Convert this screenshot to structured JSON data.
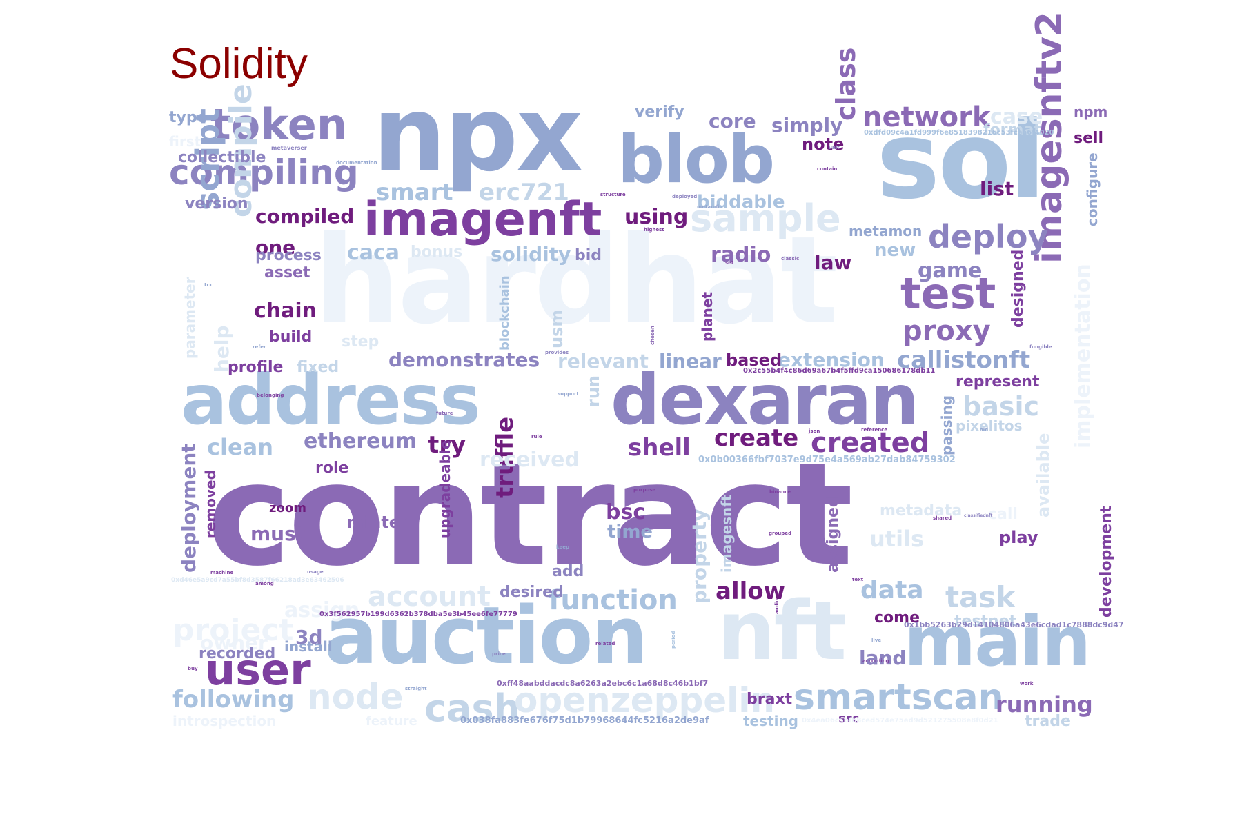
{
  "title": "Solidity",
  "colors": {
    "title": "#8b0000",
    "palette": {
      "c0": "#edf3fa",
      "c1": "#dde8f3",
      "c2": "#c3d5e8",
      "c3": "#a9c2df",
      "c4": "#93a6d0",
      "c5": "#8c83c0",
      "c6": "#8b6ab5",
      "c7": "#7d3f9f",
      "c8": "#6f1c7d"
    }
  },
  "words": [
    {
      "text": "contract",
      "c": "c6"
    },
    {
      "text": "hardhat",
      "c": "c0"
    },
    {
      "text": "npx",
      "c": "c4"
    },
    {
      "text": "sol",
      "c": "c3"
    },
    {
      "text": "auction",
      "c": "c3"
    },
    {
      "text": "nft",
      "c": "c1"
    },
    {
      "text": "main",
      "c": "c3"
    },
    {
      "text": "address",
      "c": "c3"
    },
    {
      "text": "dexaran",
      "c": "c5"
    },
    {
      "text": "blob",
      "c": "c4"
    },
    {
      "text": "imagenft",
      "c": "c7"
    },
    {
      "text": "imagesnftv2",
      "c": "c6"
    },
    {
      "text": "token",
      "c": "c5"
    },
    {
      "text": "compiling",
      "c": "c5"
    },
    {
      "text": "test",
      "c": "c6"
    },
    {
      "text": "user",
      "c": "c7"
    },
    {
      "text": "smartscan",
      "c": "c3"
    },
    {
      "text": "sample",
      "c": "c1"
    },
    {
      "text": "deploy",
      "c": "c5"
    },
    {
      "text": "network",
      "c": "c6"
    },
    {
      "text": "class",
      "c": "c6"
    },
    {
      "text": "proxy",
      "c": "c6"
    },
    {
      "text": "script",
      "c": "c4"
    },
    {
      "text": "compile",
      "c": "c2"
    },
    {
      "text": "cash",
      "c": "c2"
    },
    {
      "text": "node",
      "c": "c1"
    },
    {
      "text": "openzeppelin",
      "c": "c1"
    },
    {
      "text": "callistonft",
      "c": "c4"
    },
    {
      "text": "created",
      "c": "c7"
    },
    {
      "text": "create",
      "c": "c8"
    },
    {
      "text": "function",
      "c": "c3"
    },
    {
      "text": "account",
      "c": "c1"
    },
    {
      "text": "task",
      "c": "c2"
    },
    {
      "text": "data",
      "c": "c3"
    },
    {
      "text": "basic",
      "c": "c2"
    },
    {
      "text": "following",
      "c": "c3"
    },
    {
      "text": "allow",
      "c": "c8"
    },
    {
      "text": "shell",
      "c": "c7"
    },
    {
      "text": "truffle",
      "c": "c8"
    },
    {
      "text": "try",
      "c": "c8"
    },
    {
      "text": "ethereum",
      "c": "c5"
    },
    {
      "text": "clean",
      "c": "c3"
    },
    {
      "text": "demonstrates",
      "c": "c5"
    },
    {
      "text": "relevant",
      "c": "c2"
    },
    {
      "text": "linear",
      "c": "c4"
    },
    {
      "text": "extension",
      "c": "c3"
    },
    {
      "text": "based",
      "c": "c8"
    },
    {
      "text": "smart",
      "c": "c3"
    },
    {
      "text": "erc721",
      "c": "c2"
    },
    {
      "text": "caca",
      "c": "c3"
    },
    {
      "text": "solidity",
      "c": "c3"
    },
    {
      "text": "radio",
      "c": "c6"
    },
    {
      "text": "law",
      "c": "c8"
    },
    {
      "text": "game",
      "c": "c5"
    },
    {
      "text": "new",
      "c": "c3"
    },
    {
      "text": "metamon",
      "c": "c4"
    },
    {
      "text": "using",
      "c": "c8"
    },
    {
      "text": "biddable",
      "c": "c3"
    },
    {
      "text": "core",
      "c": "c5"
    },
    {
      "text": "simply",
      "c": "c5"
    },
    {
      "text": "note",
      "c": "c8"
    },
    {
      "text": "verify",
      "c": "c4"
    },
    {
      "text": "list",
      "c": "c8"
    },
    {
      "text": "case",
      "c": "c1"
    },
    {
      "text": "format",
      "c": "c2"
    },
    {
      "text": "npm",
      "c": "c6"
    },
    {
      "text": "sell",
      "c": "c8"
    },
    {
      "text": "configure",
      "c": "c4"
    },
    {
      "text": "compiled",
      "c": "c8"
    },
    {
      "text": "one",
      "c": "c8"
    },
    {
      "text": "process",
      "c": "c5"
    },
    {
      "text": "asset",
      "c": "c6"
    },
    {
      "text": "version",
      "c": "c5"
    },
    {
      "text": "collectible",
      "c": "c5"
    },
    {
      "text": "type",
      "c": "c4"
    },
    {
      "text": "first",
      "c": "c0"
    },
    {
      "text": "chain",
      "c": "c8"
    },
    {
      "text": "build",
      "c": "c7"
    },
    {
      "text": "profile",
      "c": "c7"
    },
    {
      "text": "fixed",
      "c": "c2"
    },
    {
      "text": "step",
      "c": "c1"
    },
    {
      "text": "bid",
      "c": "c5"
    },
    {
      "text": "bonus",
      "c": "c1"
    },
    {
      "text": "help",
      "c": "c1"
    },
    {
      "text": "parameter",
      "c": "c1"
    },
    {
      "text": "represent",
      "c": "c7"
    },
    {
      "text": "pixelitos",
      "c": "c2"
    },
    {
      "text": "passing",
      "c": "c4"
    },
    {
      "text": "designed",
      "c": "c7"
    },
    {
      "text": "planet",
      "c": "c7"
    },
    {
      "text": "blockchain",
      "c": "c3"
    },
    {
      "text": "usm",
      "c": "c2"
    },
    {
      "text": "run",
      "c": "c2"
    },
    {
      "text": "role",
      "c": "c7"
    },
    {
      "text": "received",
      "c": "c1"
    },
    {
      "text": "deployment",
      "c": "c5"
    },
    {
      "text": "removed",
      "c": "c7"
    },
    {
      "text": "zoom",
      "c": "c8"
    },
    {
      "text": "must",
      "c": "c6"
    },
    {
      "text": "minter",
      "c": "c6"
    },
    {
      "text": "upgradeable",
      "c": "c7"
    },
    {
      "text": "bsc",
      "c": "c7"
    },
    {
      "text": "time",
      "c": "c4"
    },
    {
      "text": "property",
      "c": "c2"
    },
    {
      "text": "imagesnft",
      "c": "c2"
    },
    {
      "text": "assigned",
      "c": "c6"
    },
    {
      "text": "utils",
      "c": "c1"
    },
    {
      "text": "metadata",
      "c": "c1"
    },
    {
      "text": "call",
      "c": "c0"
    },
    {
      "text": "available",
      "c": "c1"
    },
    {
      "text": "play",
      "c": "c7"
    },
    {
      "text": "development",
      "c": "c7"
    },
    {
      "text": "implementation",
      "c": "c0"
    },
    {
      "text": "add",
      "c": "c5"
    },
    {
      "text": "desired",
      "c": "c5"
    },
    {
      "text": "project",
      "c": "c0"
    },
    {
      "text": "assign",
      "c": "c0"
    },
    {
      "text": "owner",
      "c": "c0"
    },
    {
      "text": "3d",
      "c": "c5"
    },
    {
      "text": "recorded",
      "c": "c5"
    },
    {
      "text": "install",
      "c": "c4"
    },
    {
      "text": "come",
      "c": "c8"
    },
    {
      "text": "testnet",
      "c": "c2"
    },
    {
      "text": "land",
      "c": "c5"
    },
    {
      "text": "braxt",
      "c": "c7"
    },
    {
      "text": "testing",
      "c": "c3"
    },
    {
      "text": "src",
      "c": "c7"
    },
    {
      "text": "running",
      "c": "c6"
    },
    {
      "text": "trade",
      "c": "c2"
    },
    {
      "text": "introspection",
      "c": "c0"
    },
    {
      "text": "feature",
      "c": "c0"
    },
    {
      "text": "0x038fa883fe676f75d1b79968644fc5216a2de9af",
      "c": "c4"
    },
    {
      "text": "0xff48aabddacdc8a6263a2ebc6c1a68d8c46b1bf7",
      "c": "c6"
    },
    {
      "text": "0x3f562957b199d6362b378dba5e3b45ee6fe77779",
      "c": "c7"
    },
    {
      "text": "0xd46e5a9cd7a55bf8d3587f66218ad3e63462506",
      "c": "c1"
    },
    {
      "text": "0x1bb5263b29d14104806a43e6cdad1c7888dc9d47",
      "c": "c5"
    },
    {
      "text": "0x0b00366fbf7037e9d75e4a569ab27dab84759302",
      "c": "c3"
    },
    {
      "text": "0x2c55b4f4c86d69a67b4f5ffd9ca150686178db11",
      "c": "c7"
    },
    {
      "text": "0xdfd09c4a1fd999f6e8518398216c53fcea6f4020",
      "c": "c3"
    },
    {
      "text": "0x4ea06c5bfb8ced574e75ed9d521275508e8f0d21",
      "c": "c0"
    },
    {
      "text": "metaverser",
      "c": "c5"
    },
    {
      "text": "documentation",
      "c": "c4"
    },
    {
      "text": "structure",
      "c": "c7"
    },
    {
      "text": "deployed",
      "c": "c5"
    },
    {
      "text": "metaudio",
      "c": "c4"
    },
    {
      "text": "highest",
      "c": "c7"
    },
    {
      "text": "unit",
      "c": "c5"
    },
    {
      "text": "contain",
      "c": "c7"
    },
    {
      "text": "set",
      "c": "c7"
    },
    {
      "text": "classic",
      "c": "c6"
    },
    {
      "text": "trx",
      "c": "c4"
    },
    {
      "text": "refer",
      "c": "c4"
    },
    {
      "text": "belonging",
      "c": "c7"
    },
    {
      "text": "provides",
      "c": "c5"
    },
    {
      "text": "chosen",
      "c": "c6"
    },
    {
      "text": "support",
      "c": "c4"
    },
    {
      "text": "future",
      "c": "c6"
    },
    {
      "text": "rule",
      "c": "c7"
    },
    {
      "text": "json",
      "c": "c7"
    },
    {
      "text": "reference",
      "c": "c7"
    },
    {
      "text": "old",
      "c": "c4"
    },
    {
      "text": "fungible",
      "c": "c5"
    },
    {
      "text": "purpose",
      "c": "c7"
    },
    {
      "text": "binance",
      "c": "c7"
    },
    {
      "text": "grouped",
      "c": "c7"
    },
    {
      "text": "shared",
      "c": "c7"
    },
    {
      "text": "classifiednft",
      "c": "c5"
    },
    {
      "text": "keep",
      "c": "c4"
    },
    {
      "text": "machine",
      "c": "c7"
    },
    {
      "text": "among",
      "c": "c7"
    },
    {
      "text": "usage",
      "c": "c5"
    },
    {
      "text": "text",
      "c": "c7"
    },
    {
      "text": "audio",
      "c": "c7"
    },
    {
      "text": "related",
      "c": "c7"
    },
    {
      "text": "price",
      "c": "c5"
    },
    {
      "text": "buy",
      "c": "c7"
    },
    {
      "text": "live",
      "c": "c4"
    },
    {
      "text": "according",
      "c": "c7"
    },
    {
      "text": "work",
      "c": "c7"
    },
    {
      "text": "straight",
      "c": "c4"
    },
    {
      "text": "period",
      "c": "c3"
    }
  ]
}
